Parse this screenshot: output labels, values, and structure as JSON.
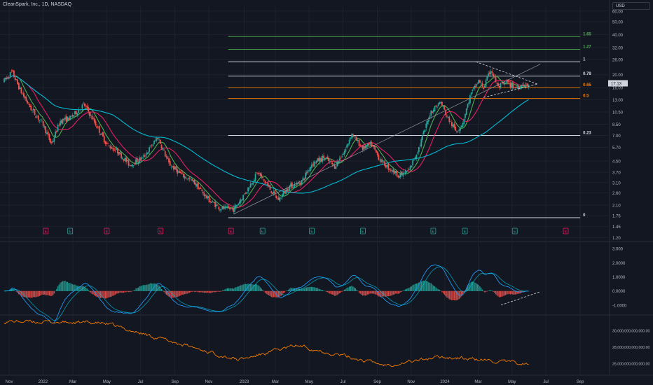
{
  "header": {
    "title": "CleanSpark, Inc., 1D, NASDAQ",
    "currency": "USD"
  },
  "colors": {
    "background": "#131722",
    "grid": "#1e222d",
    "up": "#26a69a",
    "down": "#ef5350",
    "ma_fast": "#4caf50",
    "ma_mid": "#e91e63",
    "ma_slow": "#00bcd4",
    "fib_white": "#d1d4dc",
    "fib_green": "#4caf50",
    "fib_orange": "#f57c00",
    "macd": "#2196f3",
    "signal": "#00bcd4",
    "volume_line": "#f57c00"
  },
  "chart_data": [
    {
      "type": "candlestick",
      "panel": "price",
      "scale": "log",
      "y_axis_ticks": [
        "60.00",
        "50.00",
        "40.00",
        "32.00",
        "26.00",
        "20.00",
        "16.00",
        "13.00",
        "10.50",
        "8.50",
        "7.00",
        "5.70",
        "4.50",
        "3.70",
        "3.10",
        "2.60",
        "2.10",
        "1.75",
        "1.45",
        "1.20"
      ],
      "x_axis_ticks": [
        "Nov",
        "2022",
        "Mar",
        "May",
        "Jul",
        "Sep",
        "Nov",
        "2023",
        "Mar",
        "May",
        "Jul",
        "Sep",
        "Nov",
        "2024",
        "Mar",
        "May",
        "Jul",
        "Sep"
      ],
      "x_range": [
        "2021-11",
        "2024-09"
      ],
      "close_path": [
        {
          "x": "2021-11-01",
          "y": 18
        },
        {
          "x": "2021-11-15",
          "y": 21
        },
        {
          "x": "2021-12-01",
          "y": 15
        },
        {
          "x": "2021-12-20",
          "y": 11
        },
        {
          "x": "2022-01-10",
          "y": 8.5
        },
        {
          "x": "2022-01-25",
          "y": 6.0
        },
        {
          "x": "2022-02-10",
          "y": 9.0
        },
        {
          "x": "2022-03-01",
          "y": 9.5
        },
        {
          "x": "2022-03-25",
          "y": 12
        },
        {
          "x": "2022-04-15",
          "y": 8.5
        },
        {
          "x": "2022-05-05",
          "y": 6.0
        },
        {
          "x": "2022-05-25",
          "y": 5.3
        },
        {
          "x": "2022-06-15",
          "y": 4.2
        },
        {
          "x": "2022-07-10",
          "y": 4.8
        },
        {
          "x": "2022-08-05",
          "y": 6.8
        },
        {
          "x": "2022-08-25",
          "y": 4.3
        },
        {
          "x": "2022-09-15",
          "y": 3.6
        },
        {
          "x": "2022-10-10",
          "y": 3.1
        },
        {
          "x": "2022-11-05",
          "y": 2.3
        },
        {
          "x": "2022-11-25",
          "y": 2.0
        },
        {
          "x": "2022-12-20",
          "y": 1.95
        },
        {
          "x": "2023-01-10",
          "y": 2.6
        },
        {
          "x": "2023-02-01",
          "y": 3.7
        },
        {
          "x": "2023-02-20",
          "y": 2.9
        },
        {
          "x": "2023-03-10",
          "y": 2.3
        },
        {
          "x": "2023-03-30",
          "y": 2.9
        },
        {
          "x": "2023-04-20",
          "y": 3.1
        },
        {
          "x": "2023-05-10",
          "y": 4.3
        },
        {
          "x": "2023-06-01",
          "y": 4.8
        },
        {
          "x": "2023-06-20",
          "y": 4.1
        },
        {
          "x": "2023-07-10",
          "y": 5.5
        },
        {
          "x": "2023-07-20",
          "y": 7.2
        },
        {
          "x": "2023-08-10",
          "y": 5.6
        },
        {
          "x": "2023-08-25",
          "y": 6.0
        },
        {
          "x": "2023-09-10",
          "y": 4.6
        },
        {
          "x": "2023-09-25",
          "y": 4.0
        },
        {
          "x": "2023-10-15",
          "y": 3.5
        },
        {
          "x": "2023-11-01",
          "y": 3.8
        },
        {
          "x": "2023-11-20",
          "y": 5.8
        },
        {
          "x": "2023-12-10",
          "y": 10.5
        },
        {
          "x": "2023-12-28",
          "y": 12.5
        },
        {
          "x": "2024-01-10",
          "y": 9.5
        },
        {
          "x": "2024-01-25",
          "y": 7.5
        },
        {
          "x": "2024-02-05",
          "y": 8.5
        },
        {
          "x": "2024-02-20",
          "y": 14
        },
        {
          "x": "2024-03-05",
          "y": 18
        },
        {
          "x": "2024-03-15",
          "y": 16
        },
        {
          "x": "2024-03-28",
          "y": 22
        },
        {
          "x": "2024-04-10",
          "y": 16
        },
        {
          "x": "2024-04-25",
          "y": 17.5
        },
        {
          "x": "2024-05-10",
          "y": 16
        },
        {
          "x": "2024-05-25",
          "y": 17
        },
        {
          "x": "2024-06-05",
          "y": 16.5
        }
      ],
      "last_price_label": "17.13"
    },
    {
      "type": "fibonacci_retracement",
      "panel": "price",
      "levels": [
        {
          "label": "1.65",
          "price": 38.6,
          "color": "#4caf50"
        },
        {
          "label": "1.27",
          "price": 31.0,
          "color": "#4caf50"
        },
        {
          "label": "1",
          "price": 25.0,
          "color": "#d1d4dc"
        },
        {
          "label": "0.78",
          "price": 19.5,
          "color": "#d1d4dc"
        },
        {
          "label": "0.65",
          "price": 16.0,
          "color": "#f57c00"
        },
        {
          "label": "0.5",
          "price": 13.3,
          "color": "#f57c00"
        },
        {
          "label": "0.23",
          "price": 7.0,
          "color": "#d1d4dc"
        },
        {
          "label": "0",
          "price": 1.69,
          "color": "#d1d4dc"
        }
      ]
    },
    {
      "type": "markers",
      "panel": "price",
      "labels": [
        {
          "label": "E",
          "x": "2022-01-15",
          "color": "#e91e63"
        },
        {
          "label": "E",
          "x": "2022-02-28",
          "color": "#26a69a"
        },
        {
          "label": "E",
          "x": "2022-05-05",
          "color": "#e91e63"
        },
        {
          "label": "E",
          "x": "2022-08-10",
          "color": "#e91e63"
        },
        {
          "label": "E",
          "x": "2022-12-15",
          "color": "#e91e63"
        },
        {
          "label": "E",
          "x": "2023-02-10",
          "color": "#26a69a"
        },
        {
          "label": "E",
          "x": "2023-05-10",
          "color": "#26a69a"
        },
        {
          "label": "E",
          "x": "2023-08-10",
          "color": "#26a69a"
        },
        {
          "label": "E",
          "x": "2023-12-15",
          "color": "#26a69a"
        },
        {
          "label": "E",
          "x": "2024-02-10",
          "color": "#26a69a"
        },
        {
          "label": "E",
          "x": "2024-05-10",
          "color": "#26a69a"
        },
        {
          "label": "E",
          "x": "2024-08-10",
          "color": "#e91e63"
        }
      ]
    },
    {
      "type": "macd",
      "panel": "macd",
      "y_axis_ticks": [
        "3.000",
        "2.0000",
        "1.0000",
        "0.0000",
        "-1.0000"
      ],
      "ylim": [
        -1.4,
        3.2
      ]
    },
    {
      "type": "line",
      "panel": "volume",
      "y_axis_ticks": [
        "30,000,000,000,000.00",
        "28,000,000,000,000.00",
        "26,000,000,000,000.00"
      ]
    }
  ]
}
